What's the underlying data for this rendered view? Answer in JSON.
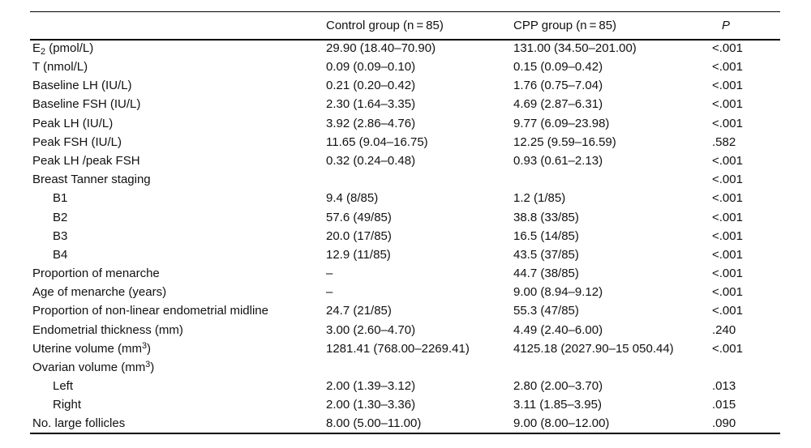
{
  "table": {
    "columns": [
      {
        "key": "label",
        "label": ""
      },
      {
        "key": "control",
        "label": "Control group (n = 85)"
      },
      {
        "key": "cpp",
        "label": "CPP group (n = 85)"
      },
      {
        "key": "p",
        "label": "P",
        "italic": true
      }
    ],
    "rows": [
      {
        "indent": false,
        "label": [
          [
            "E"
          ],
          [
            "2",
            "sub"
          ],
          [
            " (pmol/L)"
          ]
        ],
        "control": "29.90 (18.40–70.90)",
        "cpp": "131.00 (34.50–201.00)",
        "p": "<.001"
      },
      {
        "indent": false,
        "label": [
          [
            "T (nmol/L)"
          ]
        ],
        "control": "0.09 (0.09–0.10)",
        "cpp": "0.15 (0.09–0.42)",
        "p": "<.001"
      },
      {
        "indent": false,
        "label": [
          [
            "Baseline LH (IU/L)"
          ]
        ],
        "control": "0.21 (0.20–0.42)",
        "cpp": "1.76 (0.75–7.04)",
        "p": "<.001"
      },
      {
        "indent": false,
        "label": [
          [
            "Baseline FSH (IU/L)"
          ]
        ],
        "control": "2.30 (1.64–3.35)",
        "cpp": "4.69 (2.87–6.31)",
        "p": "<.001"
      },
      {
        "indent": false,
        "label": [
          [
            "Peak LH (IU/L)"
          ]
        ],
        "control": "3.92 (2.86–4.76)",
        "cpp": "9.77 (6.09–23.98)",
        "p": "<.001"
      },
      {
        "indent": false,
        "label": [
          [
            "Peak FSH (IU/L)"
          ]
        ],
        "control": "11.65 (9.04–16.75)",
        "cpp": "12.25 (9.59–16.59)",
        "p": ".582"
      },
      {
        "indent": false,
        "label": [
          [
            "Peak LH /peak FSH"
          ]
        ],
        "control": "0.32 (0.24–0.48)",
        "cpp": "0.93 (0.61–2.13)",
        "p": "<.001"
      },
      {
        "indent": false,
        "label": [
          [
            "Breast Tanner staging"
          ]
        ],
        "control": "",
        "cpp": "",
        "p": "<.001"
      },
      {
        "indent": true,
        "label": [
          [
            "B1"
          ]
        ],
        "control": "9.4 (8/85)",
        "cpp": "1.2 (1/85)",
        "p": "<.001"
      },
      {
        "indent": true,
        "label": [
          [
            "B2"
          ]
        ],
        "control": "57.6 (49/85)",
        "cpp": "38.8 (33/85)",
        "p": "<.001"
      },
      {
        "indent": true,
        "label": [
          [
            "B3"
          ]
        ],
        "control": "20.0 (17/85)",
        "cpp": "16.5 (14/85)",
        "p": "<.001"
      },
      {
        "indent": true,
        "label": [
          [
            "B4"
          ]
        ],
        "control": "12.9 (11/85)",
        "cpp": "43.5 (37/85)",
        "p": "<.001"
      },
      {
        "indent": false,
        "label": [
          [
            "Proportion of menarche"
          ]
        ],
        "control": "–",
        "cpp": "44.7 (38/85)",
        "p": "<.001"
      },
      {
        "indent": false,
        "label": [
          [
            "Age of menarche (years)"
          ]
        ],
        "control": "–",
        "cpp": "9.00 (8.94–9.12)",
        "p": "<.001"
      },
      {
        "indent": false,
        "label": [
          [
            "Proportion of non-linear endometrial midline"
          ]
        ],
        "control": "24.7 (21/85)",
        "cpp": "55.3 (47/85)",
        "p": "<.001"
      },
      {
        "indent": false,
        "label": [
          [
            "Endometrial thickness (mm)"
          ]
        ],
        "control": "3.00 (2.60–4.70)",
        "cpp": "4.49 (2.40–6.00)",
        "p": ".240"
      },
      {
        "indent": false,
        "label": [
          [
            "Uterine volume (mm"
          ],
          [
            "3",
            "sup"
          ],
          [
            ")"
          ]
        ],
        "control": "1281.41 (768.00–2269.41)",
        "cpp": "4125.18 (2027.90–15 050.44)",
        "p": "<.001"
      },
      {
        "indent": false,
        "label": [
          [
            "Ovarian volume (mm"
          ],
          [
            "3",
            "sup"
          ],
          [
            ")"
          ]
        ],
        "control": "",
        "cpp": "",
        "p": ""
      },
      {
        "indent": true,
        "label": [
          [
            "Left"
          ]
        ],
        "control": "2.00 (1.39–3.12)",
        "cpp": "2.80 (2.00–3.70)",
        "p": ".013"
      },
      {
        "indent": true,
        "label": [
          [
            "Right"
          ]
        ],
        "control": "2.00 (1.30–3.36)",
        "cpp": "3.11 (1.85–3.95)",
        "p": ".015"
      },
      {
        "indent": false,
        "label": [
          [
            "No. large follicles"
          ]
        ],
        "control": "8.00 (5.00–11.00)",
        "cpp": "9.00 (8.00–12.00)",
        "p": ".090"
      }
    ]
  }
}
